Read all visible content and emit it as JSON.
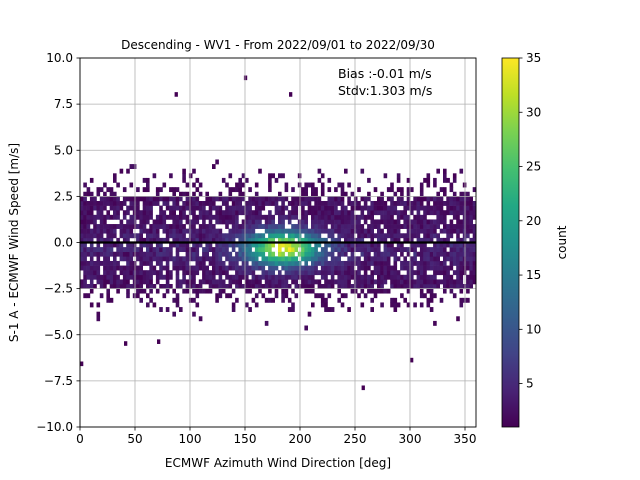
{
  "chart_data": {
    "type": "heatmap",
    "title": "Descending - WV1 - From 2022/09/01 to 2022/09/30",
    "xlabel": "ECMWF Azimuth Wind Direction [deg]",
    "ylabel": "S-1 A - ECMWF Wind Speed [m/s]",
    "xlim": [
      0,
      360
    ],
    "ylim": [
      -10,
      10
    ],
    "xticks": [
      "0",
      "50",
      "100",
      "150",
      "200",
      "250",
      "300",
      "350"
    ],
    "yticks": [
      "10.0",
      "7.5",
      "5.0",
      "2.5",
      "0.0",
      "−2.5",
      "−5.0",
      "−7.5",
      "−10.0"
    ],
    "grid": true,
    "zero_line": 0,
    "annotations": [
      "Bias :-0.01 m/s",
      "Stdv:1.303 m/s"
    ],
    "colorbar": {
      "label": "count",
      "range": [
        1,
        35
      ],
      "ticks": [
        "5",
        "10",
        "15",
        "20",
        "25",
        "30",
        "35"
      ],
      "colormap": "viridis"
    },
    "density_summary": {
      "peak_count": 35,
      "peak_direction_deg": 185,
      "peak_speed_diff_ms": -0.3,
      "core_speed_range_ms": [
        -2.5,
        2.5
      ],
      "sparse_outliers": [
        {
          "direction_deg": 86,
          "speed_diff_ms": 7.9
        },
        {
          "direction_deg": 149,
          "speed_diff_ms": 8.8
        },
        {
          "direction_deg": 190,
          "speed_diff_ms": 7.9
        },
        {
          "direction_deg": 0,
          "speed_diff_ms": -6.7
        },
        {
          "direction_deg": 256,
          "speed_diff_ms": -8.0
        },
        {
          "direction_deg": 300,
          "speed_diff_ms": -6.5
        },
        {
          "direction_deg": 40,
          "speed_diff_ms": -5.6
        },
        {
          "direction_deg": 70,
          "speed_diff_ms": -5.5
        }
      ]
    }
  }
}
